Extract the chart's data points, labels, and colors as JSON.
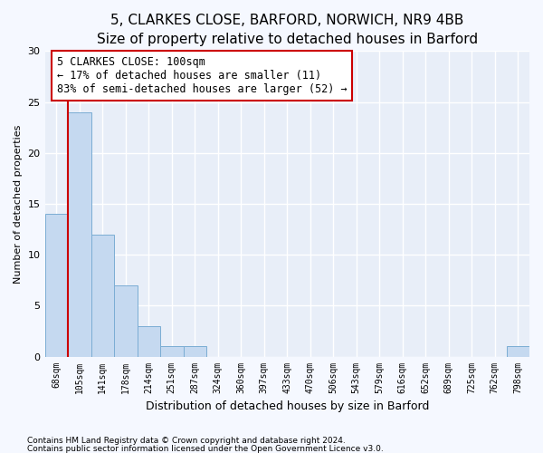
{
  "title1": "5, CLARKES CLOSE, BARFORD, NORWICH, NR9 4BB",
  "title2": "Size of property relative to detached houses in Barford",
  "xlabel": "Distribution of detached houses by size in Barford",
  "ylabel": "Number of detached properties",
  "categories": [
    "68sqm",
    "105sqm",
    "141sqm",
    "178sqm",
    "214sqm",
    "251sqm",
    "287sqm",
    "324sqm",
    "360sqm",
    "397sqm",
    "433sqm",
    "470sqm",
    "506sqm",
    "543sqm",
    "579sqm",
    "616sqm",
    "652sqm",
    "689sqm",
    "725sqm",
    "762sqm",
    "798sqm"
  ],
  "values": [
    14,
    24,
    12,
    7,
    3,
    1,
    1,
    0,
    0,
    0,
    0,
    0,
    0,
    0,
    0,
    0,
    0,
    0,
    0,
    0,
    1
  ],
  "bar_color": "#c5d9f0",
  "bar_edge_color": "#7badd4",
  "vline_x": 0.5,
  "vline_color": "#cc0000",
  "annotation_line1": "5 CLARKES CLOSE: 100sqm",
  "annotation_line2": "← 17% of detached houses are smaller (11)",
  "annotation_line3": "83% of semi-detached houses are larger (52) →",
  "annotation_box_facecolor": "white",
  "annotation_box_edgecolor": "#cc0000",
  "ylim": [
    0,
    30
  ],
  "yticks": [
    0,
    5,
    10,
    15,
    20,
    25,
    30
  ],
  "footer1": "Contains HM Land Registry data © Crown copyright and database right 2024.",
  "footer2": "Contains public sector information licensed under the Open Government Licence v3.0.",
  "fig_facecolor": "#f5f8ff",
  "plot_facecolor": "#e8eef8",
  "grid_color": "#ffffff",
  "title1_fontsize": 11,
  "title2_fontsize": 10,
  "xlabel_fontsize": 9,
  "ylabel_fontsize": 8,
  "tick_fontsize": 7,
  "annotation_fontsize": 8.5,
  "footer_fontsize": 6.5
}
